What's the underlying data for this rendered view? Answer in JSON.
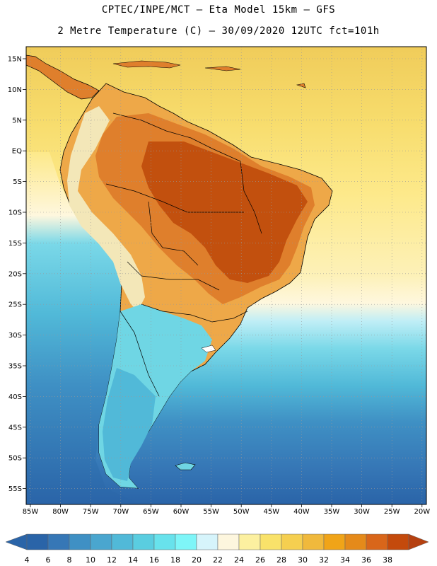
{
  "header": {
    "line1": "CPTEC/INPE/MCT –   Eta Model 15km – GFS",
    "line2": "2 Metre Temperature (C) – 30/09/2020 12UTC fct=101h"
  },
  "axes": {
    "latitudes": [
      "15N",
      "10N",
      "5N",
      "EQ",
      "5S",
      "10S",
      "15S",
      "20S",
      "25S",
      "30S",
      "35S",
      "40S",
      "45S",
      "50S",
      "55S"
    ],
    "longitudes": [
      "85W",
      "80W",
      "75W",
      "70W",
      "65W",
      "60W",
      "55W",
      "50W",
      "45W",
      "40W",
      "35W",
      "30W",
      "25W",
      "20W"
    ]
  },
  "colorbar": {
    "labels": [
      "4",
      "6",
      "8",
      "10",
      "12",
      "14",
      "16",
      "18",
      "20",
      "22",
      "24",
      "26",
      "28",
      "30",
      "32",
      "34",
      "36",
      "38"
    ],
    "colors": [
      "#2a64a8",
      "#3677b6",
      "#3f90c4",
      "#4aa6cf",
      "#51b9d8",
      "#5acde0",
      "#68e2ec",
      "#7ef5f8",
      "#d6f4fb",
      "#fdf6de",
      "#fcf0a0",
      "#f9e26a",
      "#f5cf50",
      "#f0b93c",
      "#f0a418",
      "#e58a1a",
      "#d9661a",
      "#c44a0c"
    ],
    "low_color": "#2a64a8",
    "high_color": "#b54010"
  },
  "map": {
    "ocean_atlantic_north": "#f0cc5a",
    "ocean_tropical": "#fde98a",
    "ocean_subtropic": "#fef7de",
    "ocean_cool": "#7ad8e8",
    "ocean_cold": "#3f90c4",
    "ocean_deep": "#2a64a8",
    "land_hot": "#c2500e",
    "land_warm": "#df7f2c",
    "land_mild": "#eea848",
    "land_cool": "#6fd6e4",
    "andes": "#f3e7b8"
  }
}
